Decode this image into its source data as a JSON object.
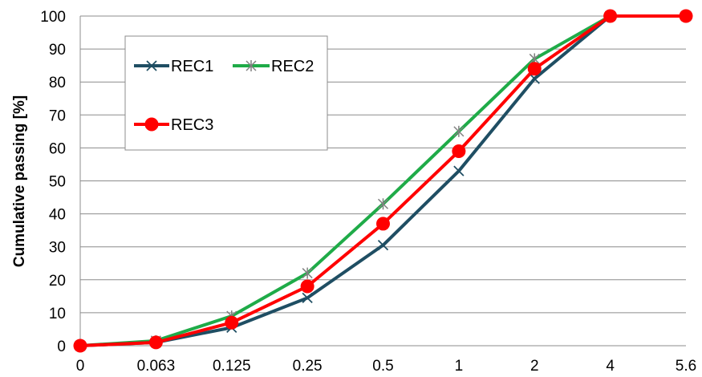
{
  "chart_data": {
    "type": "line",
    "title": "",
    "xlabel": "",
    "ylabel": "Cumulative passing [%]",
    "ylim": [
      0,
      100
    ],
    "y_ticks": [
      0,
      10,
      20,
      30,
      40,
      50,
      60,
      70,
      80,
      90,
      100
    ],
    "categories": [
      "0",
      "0.063",
      "0.125",
      "0.25",
      "0.5",
      "1",
      "2",
      "4",
      "5.6"
    ],
    "grid": "horizontal",
    "legend_position": "top-left",
    "series": [
      {
        "name": "REC1",
        "color": "#1f4e63",
        "marker": "x",
        "values": [
          0,
          1,
          5.5,
          14.5,
          30.5,
          53,
          81,
          100,
          100
        ]
      },
      {
        "name": "REC2",
        "color": "#1fab48",
        "marker": "star",
        "values": [
          0,
          1.5,
          9,
          22,
          43,
          65,
          87,
          100,
          100
        ]
      },
      {
        "name": "REC3",
        "color": "#ff0000",
        "marker": "circle",
        "values": [
          0,
          1,
          7,
          18,
          37,
          59,
          84,
          100,
          100
        ]
      }
    ]
  }
}
